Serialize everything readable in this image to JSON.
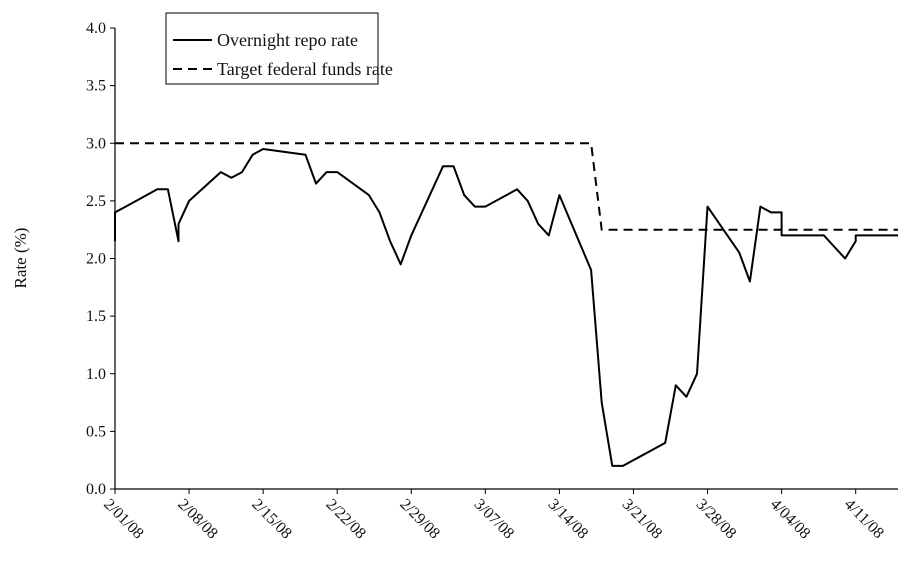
{
  "chart_data": {
    "type": "line",
    "title": "",
    "xlabel": "",
    "ylabel": "Rate (%)",
    "ylim": [
      0,
      4.0
    ],
    "y_ticks": [
      "0.0",
      "0.5",
      "1.0",
      "1.5",
      "2.0",
      "2.5",
      "3.0",
      "3.5",
      "4.0"
    ],
    "x_range": [
      "2008-02-01",
      "2008-04-15"
    ],
    "x_ticks": [
      {
        "date": "2008-02-01",
        "label": "2/01/08"
      },
      {
        "date": "2008-02-08",
        "label": "2/08/08"
      },
      {
        "date": "2008-02-15",
        "label": "2/15/08"
      },
      {
        "date": "2008-02-22",
        "label": "2/22/08"
      },
      {
        "date": "2008-02-29",
        "label": "2/29/08"
      },
      {
        "date": "2008-03-07",
        "label": "3/07/08"
      },
      {
        "date": "2008-03-14",
        "label": "3/14/08"
      },
      {
        "date": "2008-03-21",
        "label": "3/21/08"
      },
      {
        "date": "2008-03-28",
        "label": "3/28/08"
      },
      {
        "date": "2008-04-04",
        "label": "4/04/08"
      },
      {
        "date": "2008-04-11",
        "label": "4/11/08"
      }
    ],
    "legend_position": "top-left",
    "grid": false,
    "series": [
      {
        "name": "Overnight repo rate",
        "style": "solid",
        "color": "#000000",
        "points": [
          [
            "2008-02-01",
            2.15
          ],
          [
            "2008-02-01",
            2.4
          ],
          [
            "2008-02-03",
            2.5
          ],
          [
            "2008-02-05",
            2.6
          ],
          [
            "2008-02-06",
            2.6
          ],
          [
            "2008-02-07",
            2.15
          ],
          [
            "2008-02-07",
            2.3
          ],
          [
            "2008-02-08",
            2.5
          ],
          [
            "2008-02-11",
            2.75
          ],
          [
            "2008-02-12",
            2.7
          ],
          [
            "2008-02-13",
            2.75
          ],
          [
            "2008-02-14",
            2.9
          ],
          [
            "2008-02-15",
            2.95
          ],
          [
            "2008-02-19",
            2.9
          ],
          [
            "2008-02-20",
            2.65
          ],
          [
            "2008-02-21",
            2.75
          ],
          [
            "2008-02-22",
            2.75
          ],
          [
            "2008-02-25",
            2.55
          ],
          [
            "2008-02-26",
            2.4
          ],
          [
            "2008-02-27",
            2.15
          ],
          [
            "2008-02-28",
            1.95
          ],
          [
            "2008-02-29",
            2.2
          ],
          [
            "2008-03-03",
            2.8
          ],
          [
            "2008-03-04",
            2.8
          ],
          [
            "2008-03-05",
            2.55
          ],
          [
            "2008-03-06",
            2.45
          ],
          [
            "2008-03-07",
            2.45
          ],
          [
            "2008-03-10",
            2.6
          ],
          [
            "2008-03-11",
            2.5
          ],
          [
            "2008-03-12",
            2.3
          ],
          [
            "2008-03-13",
            2.2
          ],
          [
            "2008-03-14",
            2.55
          ],
          [
            "2008-03-17",
            1.9
          ],
          [
            "2008-03-18",
            0.75
          ],
          [
            "2008-03-19",
            0.2
          ],
          [
            "2008-03-20",
            0.2
          ],
          [
            "2008-03-24",
            0.4
          ],
          [
            "2008-03-25",
            0.9
          ],
          [
            "2008-03-26",
            0.8
          ],
          [
            "2008-03-27",
            1.0
          ],
          [
            "2008-03-28",
            2.45
          ],
          [
            "2008-03-31",
            2.05
          ],
          [
            "2008-04-01",
            1.8
          ],
          [
            "2008-04-02",
            2.45
          ],
          [
            "2008-04-03",
            2.4
          ],
          [
            "2008-04-04",
            2.4
          ],
          [
            "2008-04-04",
            2.2
          ],
          [
            "2008-04-07",
            2.2
          ],
          [
            "2008-04-08",
            2.2
          ],
          [
            "2008-04-09",
            2.1
          ],
          [
            "2008-04-10",
            2.0
          ],
          [
            "2008-04-11",
            2.15
          ],
          [
            "2008-04-11",
            2.2
          ],
          [
            "2008-04-15",
            2.2
          ]
        ]
      },
      {
        "name": "Target federal funds rate",
        "style": "dashed",
        "color": "#000000",
        "points": [
          [
            "2008-02-01",
            3.0
          ],
          [
            "2008-03-17",
            3.0
          ],
          [
            "2008-03-18",
            2.25
          ],
          [
            "2008-04-15",
            2.25
          ]
        ]
      }
    ]
  }
}
